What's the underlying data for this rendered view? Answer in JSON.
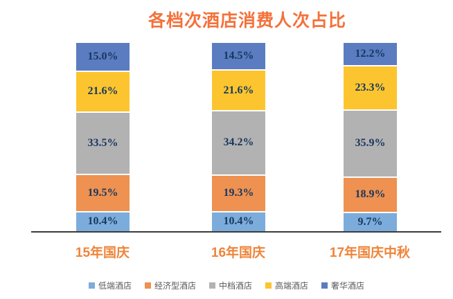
{
  "title": {
    "text": "各档次酒店消费人次占比",
    "color": "#F4713B"
  },
  "axis": {
    "line_color": "#3A3A3A",
    "category_label_color": "#EF8438"
  },
  "labels": {
    "value_text_color": "#17375E",
    "legend_text_color": "#595959"
  },
  "chart_data": {
    "type": "bar",
    "stacked": true,
    "orientation": "vertical",
    "title": "各档次酒店消费人次占比",
    "categories": [
      "15年国庆",
      "16年国庆",
      "17年国庆中秋"
    ],
    "series": [
      {
        "name": "低端酒店",
        "color": "#7CACDB",
        "values": [
          10.4,
          10.4,
          9.7
        ]
      },
      {
        "name": "经济型酒店",
        "color": "#EE9151",
        "values": [
          19.5,
          19.3,
          18.9
        ]
      },
      {
        "name": "中档酒店",
        "color": "#B3B2B2",
        "values": [
          33.5,
          34.2,
          35.9
        ]
      },
      {
        "name": "高端酒店",
        "color": "#FCC52F",
        "values": [
          21.6,
          21.6,
          23.3
        ]
      },
      {
        "name": "奢华酒店",
        "color": "#5B7CC0",
        "values": [
          15.0,
          14.5,
          12.2
        ]
      }
    ],
    "stack_order_top_to_bottom": [
      "奢华酒店",
      "高端酒店",
      "中档酒店",
      "经济型酒店",
      "低端酒店"
    ],
    "value_suffix": "%",
    "value_decimals": 1,
    "ylim": [
      0,
      100
    ],
    "grid": false,
    "legend_position": "bottom",
    "data_labels": true
  }
}
